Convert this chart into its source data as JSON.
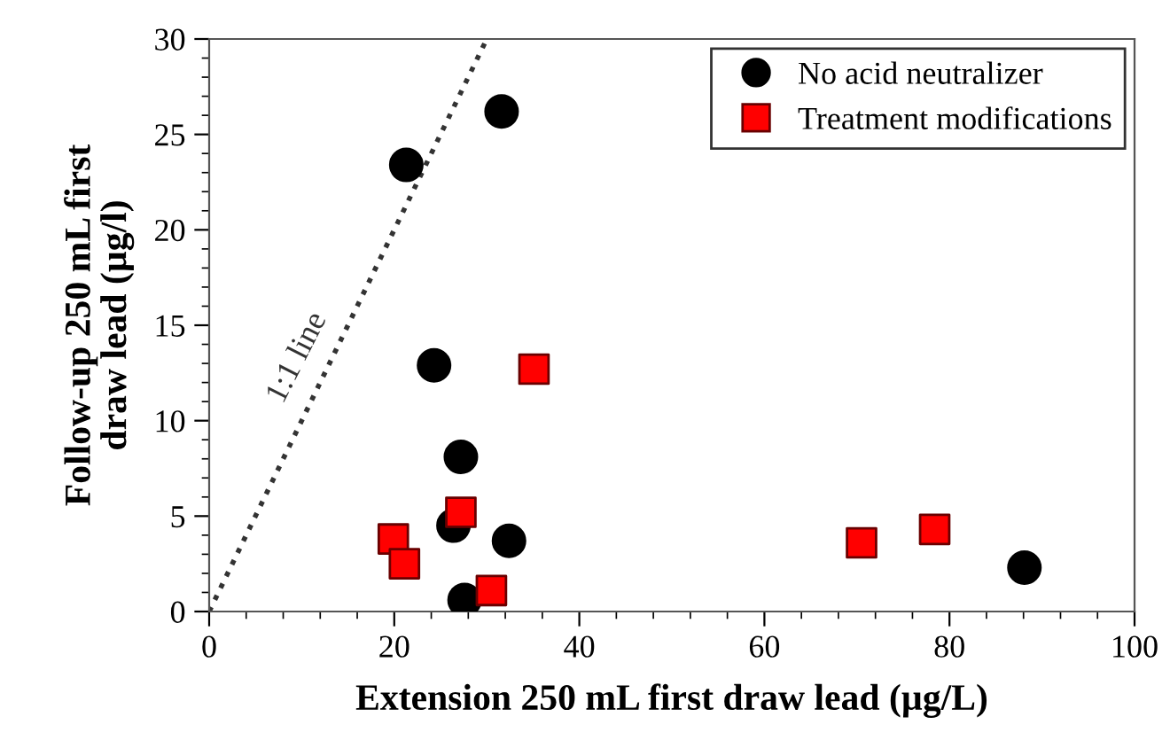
{
  "chart_data": {
    "type": "scatter",
    "xlabel": "Extension 250 mL first draw lead (µg/L)",
    "ylabel": "Follow-up 250 mL first\ndraw lead (µg/l)",
    "xlim": [
      0,
      100
    ],
    "xticks": [
      0,
      20,
      40,
      60,
      80,
      100
    ],
    "ylim": [
      0,
      30
    ],
    "yticks": [
      0,
      5,
      10,
      15,
      20,
      25,
      30
    ],
    "grid": false,
    "legend": "top right",
    "series": [
      {
        "name": "No acid neutralizer",
        "color": "#000000",
        "marker": "circle",
        "x": [
          21.3,
          31.6,
          24.3,
          27.2,
          26.4,
          32.4,
          27.6,
          88.1
        ],
        "values": [
          23.4,
          26.2,
          12.9,
          8.1,
          4.5,
          3.7,
          0.6,
          2.3
        ]
      },
      {
        "name": "Treatment modifications",
        "color": "#ff0000",
        "marker": "square",
        "x": [
          35.1,
          27.2,
          19.9,
          21.1,
          30.5,
          70.5,
          78.4
        ],
        "values": [
          12.7,
          5.2,
          3.8,
          2.5,
          1.1,
          3.6,
          4.3
        ]
      },
      {
        "type": "line",
        "color": "#333333",
        "line_style": "dotted",
        "marker": "none",
        "x": [
          0,
          30
        ],
        "values": [
          0,
          30
        ]
      }
    ],
    "annotations": [
      {
        "text": "1:1 line",
        "x": 12.5,
        "y": 12.5
      }
    ]
  }
}
